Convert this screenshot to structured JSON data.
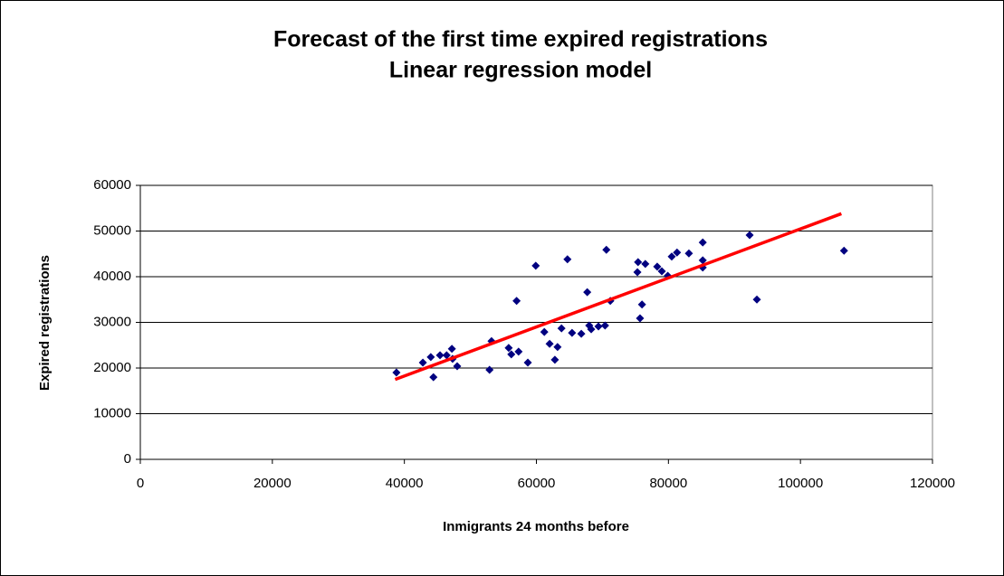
{
  "chart_data": {
    "type": "scatter",
    "title": [
      "Forecast of the first time expired registrations",
      "Linear regression model"
    ],
    "x_label": "Inmigrants 24 months before",
    "y_label": "Expired registrations",
    "xlim": [
      0,
      120000
    ],
    "ylim": [
      0,
      60000
    ],
    "xticks": [
      0,
      20000,
      40000,
      60000,
      80000,
      100000,
      120000
    ],
    "yticks": [
      0,
      10000,
      20000,
      30000,
      40000,
      50000,
      60000
    ],
    "grid": true,
    "points": {
      "color": "#000080",
      "x": [
        38800,
        42800,
        44000,
        44400,
        45400,
        46400,
        47200,
        47300,
        48000,
        52900,
        53200,
        55800,
        56200,
        57000,
        57300,
        58700,
        59900,
        61200,
        62000,
        62800,
        63200,
        63800,
        64700,
        65400,
        66800,
        67700,
        68000,
        68300,
        69400,
        70400,
        70600,
        71200,
        75300,
        75400,
        75700,
        76000,
        76500,
        78300,
        79000,
        79900,
        80500,
        81300,
        83100,
        85200,
        85200,
        85200,
        92300,
        93400,
        106600
      ],
      "values": [
        19000,
        21200,
        22400,
        18000,
        22800,
        22800,
        24200,
        22000,
        20400,
        19600,
        25900,
        24400,
        23000,
        34700,
        23600,
        21200,
        42400,
        27900,
        25300,
        21800,
        24600,
        28700,
        43800,
        27700,
        27500,
        36600,
        29300,
        28500,
        29100,
        29300,
        45900,
        34700,
        41000,
        43200,
        30900,
        33900,
        42800,
        42200,
        41200,
        40200,
        44400,
        45300,
        45100,
        42000,
        43600,
        47500,
        49100,
        35000,
        45700
      ]
    },
    "trendline": {
      "color": "#ff0000",
      "x": [
        38600,
        106200
      ],
      "values": [
        17500,
        53800
      ]
    }
  }
}
